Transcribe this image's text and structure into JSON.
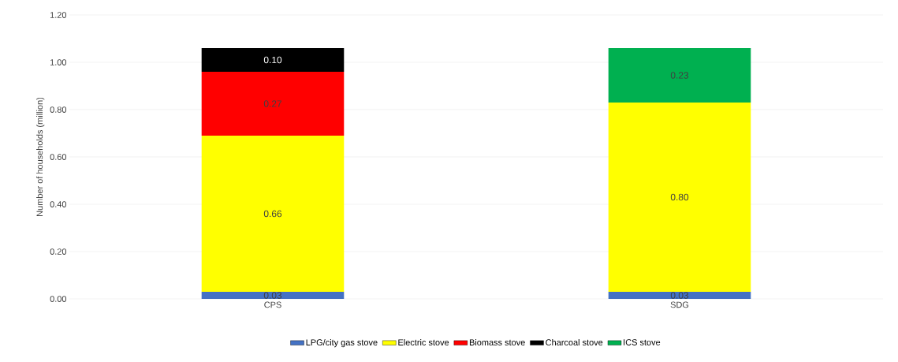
{
  "chart_data": {
    "type": "bar",
    "stacked": true,
    "ylabel": "Number of households (million)",
    "categories": [
      "CPS",
      "SDG"
    ],
    "series": [
      {
        "name": "LPG/city gas stove",
        "color": "#4472c4",
        "values": [
          0.03,
          0.03
        ],
        "value_labels": [
          "0.03",
          "0.03"
        ]
      },
      {
        "name": "Electric stove",
        "color": "#ffff00",
        "values": [
          0.66,
          0.8
        ],
        "value_labels": [
          "0.66",
          "0.80"
        ]
      },
      {
        "name": "Biomass stove",
        "color": "#ff0000",
        "values": [
          0.27,
          null
        ],
        "value_labels": [
          "0.27",
          null
        ]
      },
      {
        "name": "Charcoal stove",
        "color": "#000000",
        "values": [
          0.1,
          null
        ],
        "value_labels": [
          "0.10",
          null
        ]
      },
      {
        "name": "ICS stove",
        "color": "#00b050",
        "values": [
          null,
          0.23
        ],
        "value_labels": [
          null,
          "0.23"
        ]
      }
    ],
    "ylim": [
      0,
      1.2
    ],
    "yticks": [
      {
        "value": 0,
        "label": "0.00"
      },
      {
        "value": 0.2,
        "label": "0.20"
      },
      {
        "value": 0.4,
        "label": "0.40"
      },
      {
        "value": 0.6,
        "label": "0.60"
      },
      {
        "value": 0.8,
        "label": "0.80"
      },
      {
        "value": 1.0,
        "label": "1.00"
      },
      {
        "value": 1.2,
        "label": "1.20"
      }
    ],
    "grid": "y",
    "legend": "bottom"
  }
}
